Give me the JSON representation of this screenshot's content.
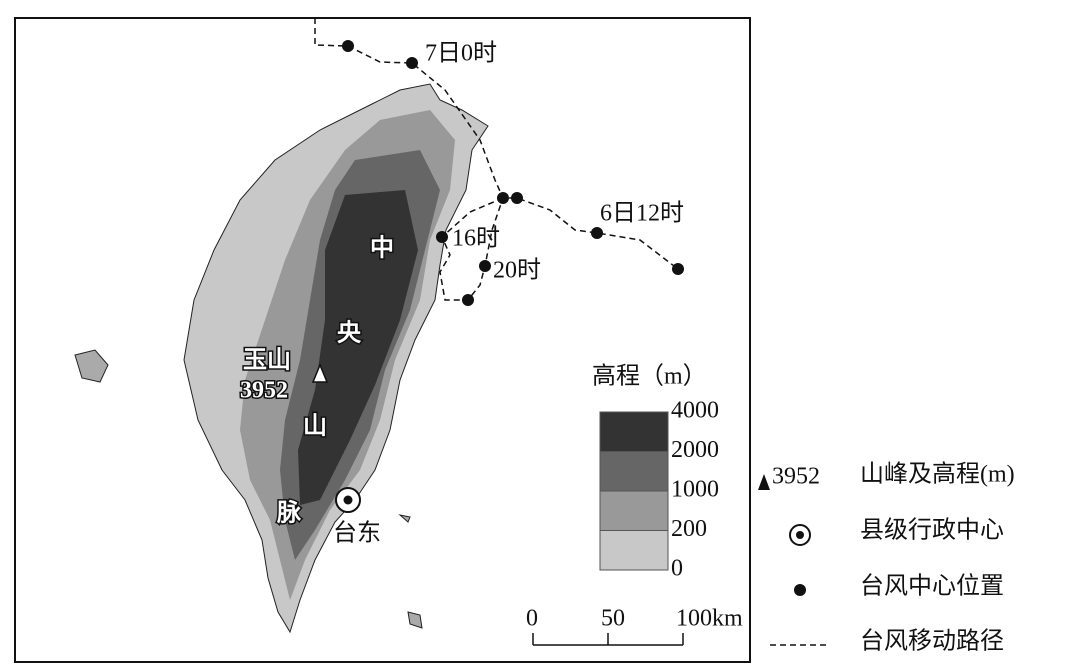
{
  "map": {
    "track_labels": [
      "7日0时",
      "6日12时",
      "16时",
      "20时"
    ],
    "range_name": [
      "中",
      "央",
      "山",
      "脉"
    ],
    "peak": {
      "name": "玉山",
      "elevation": "3952"
    },
    "town": "台东",
    "elevation_legend": {
      "title": "高程（m）",
      "levels": [
        4000,
        2000,
        1000,
        200,
        0
      ],
      "colors": [
        "#333333",
        "#666666",
        "#999999",
        "#c8c8c8"
      ]
    },
    "scale_bar": {
      "ticks": [
        0,
        50,
        {
          "value": 100,
          "label": "100km"
        }
      ]
    },
    "legend": {
      "peak_sample": "3952",
      "peak": "山峰及高程(m)",
      "county": "县级行政中心",
      "center": "台风中心位置",
      "track": "台风移动路径"
    }
  }
}
